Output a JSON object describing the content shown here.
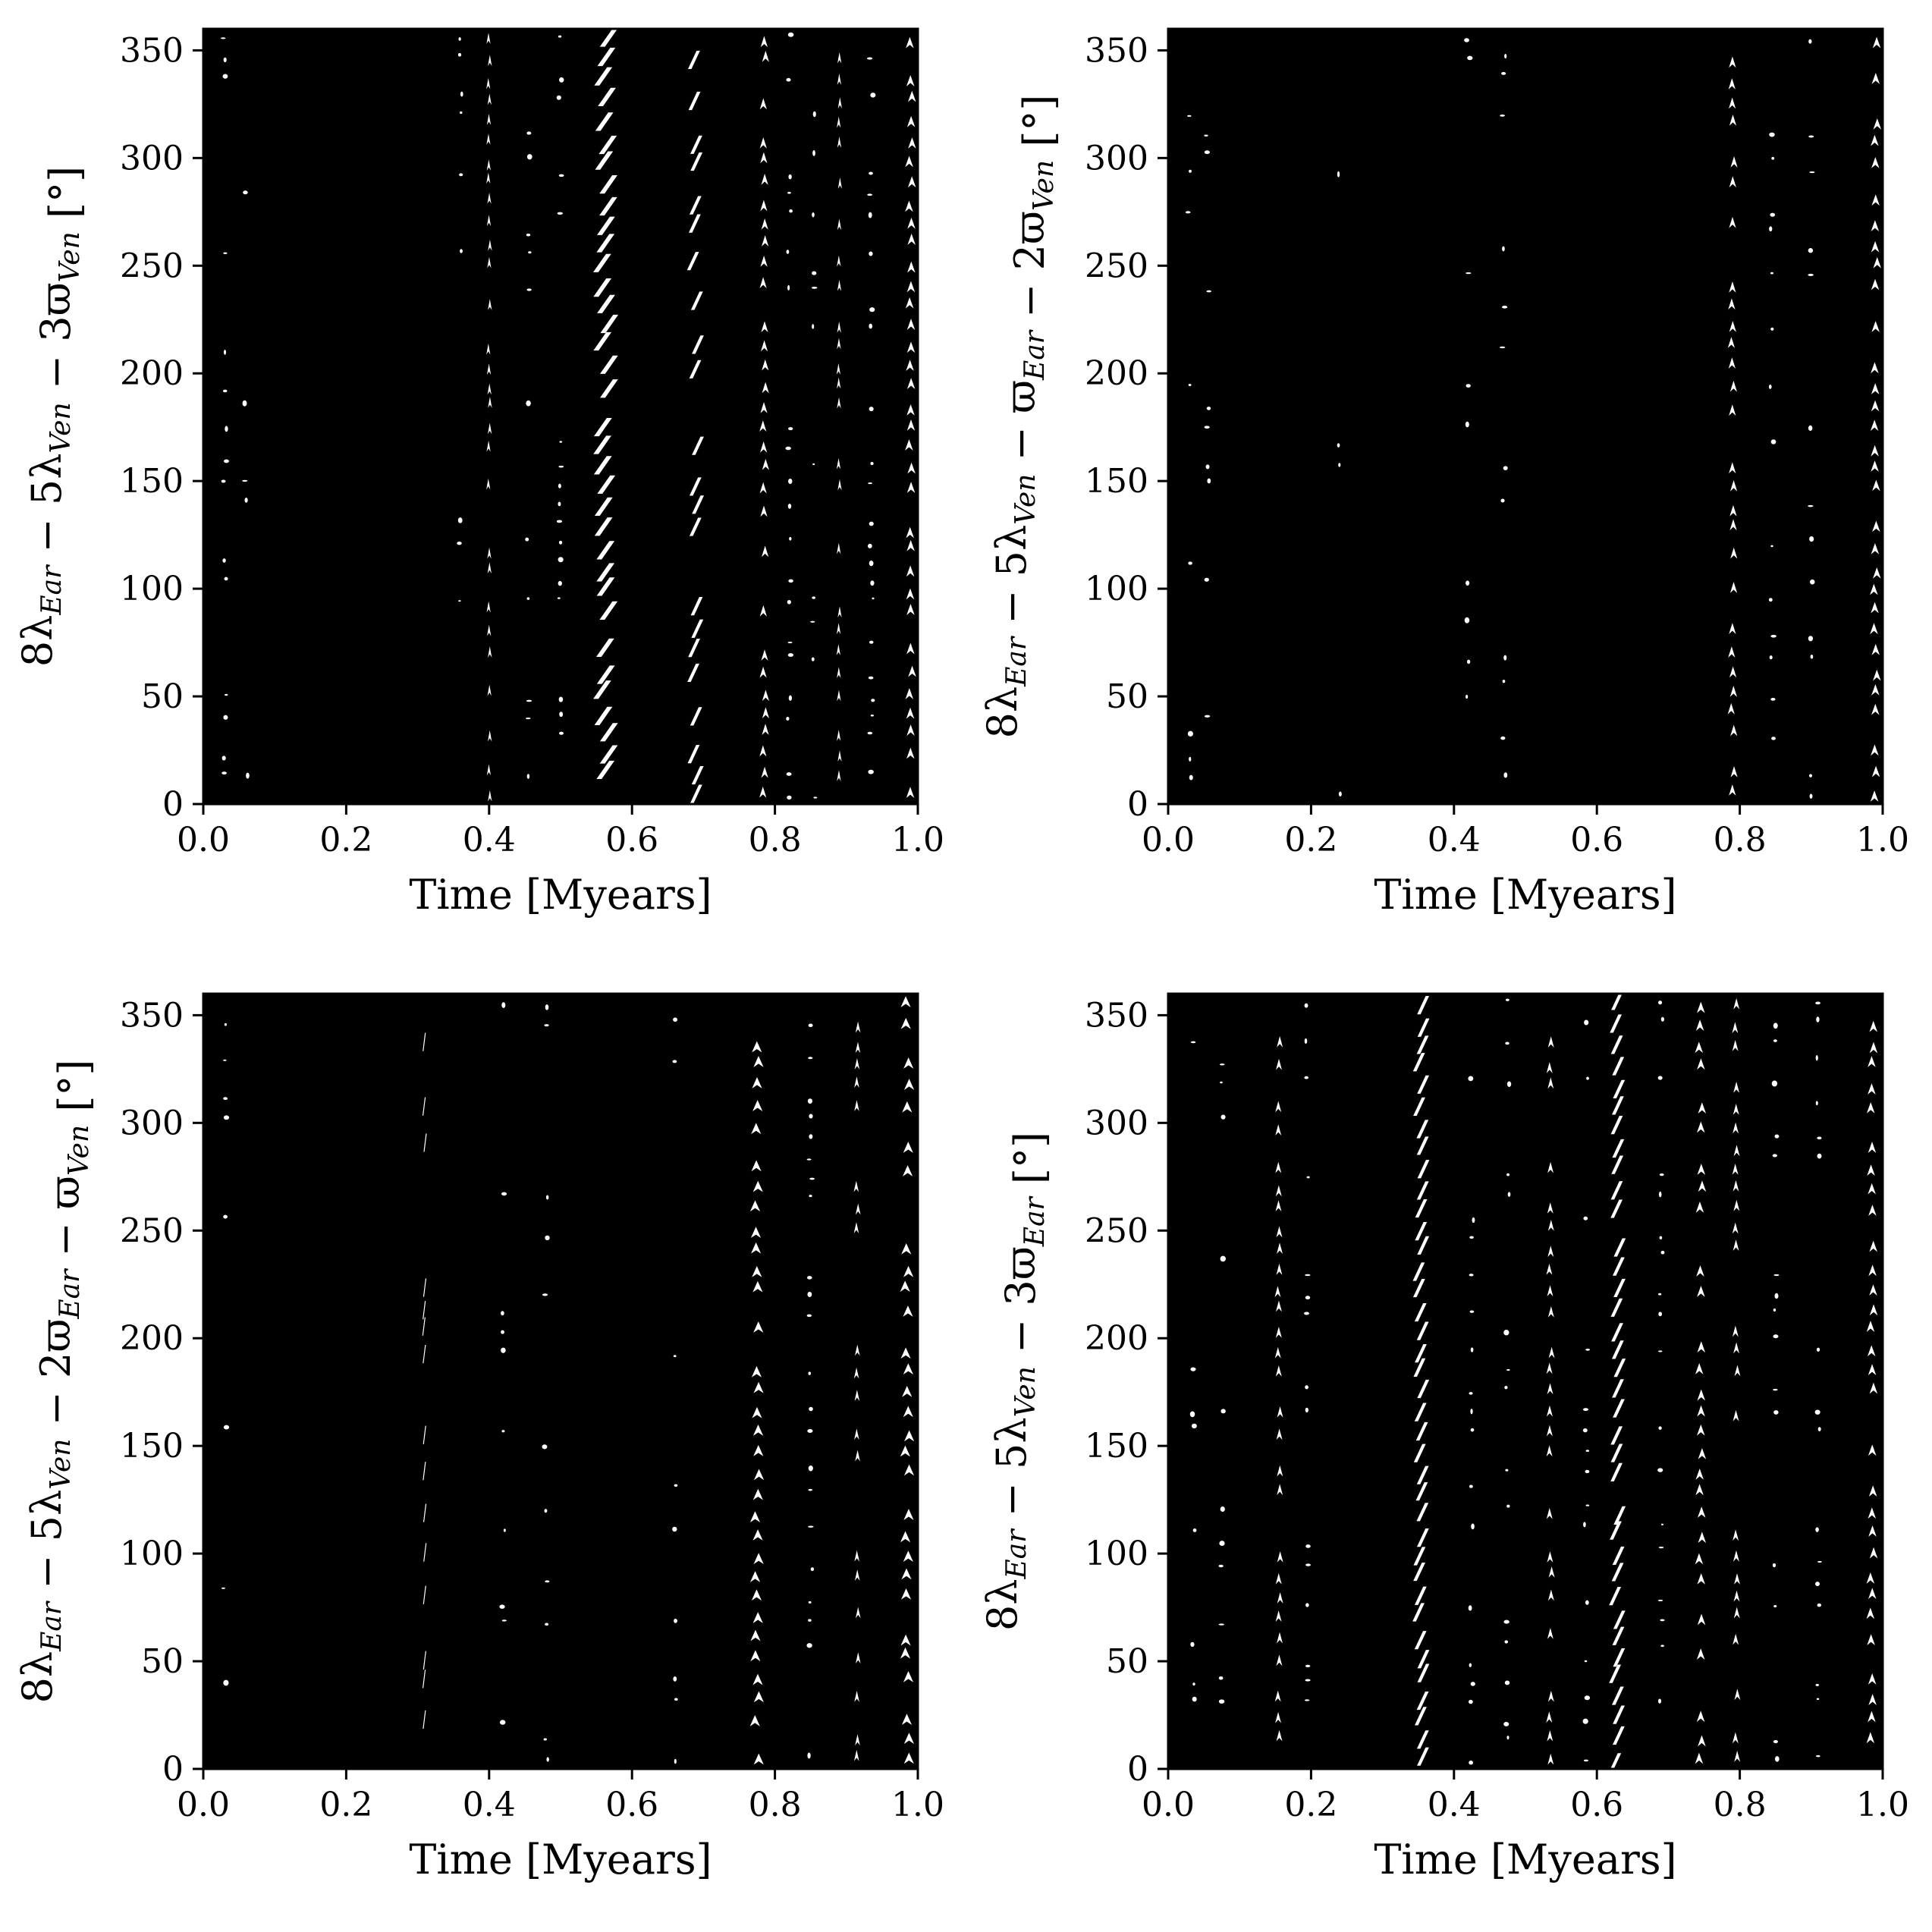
{
  "chart_data": [
    {
      "type": "scatter",
      "panel": "top-left",
      "xlabel": "Time [Myears]",
      "ylabel": "8λEar − 5λVen − 3ϖVen [°]",
      "ylabel_parts": [
        "8λ",
        "Ear",
        " − 5λ",
        "Ven",
        " − 3ϖ",
        "Ven",
        " [°]"
      ],
      "xlim": [
        0.0,
        1.0
      ],
      "ylim": [
        0,
        360
      ],
      "xticks": [
        "0.0",
        "0.2",
        "0.4",
        "0.6",
        "0.8",
        "1.0"
      ],
      "yticks": [
        "0",
        "50",
        "100",
        "150",
        "200",
        "250",
        "300",
        "350"
      ],
      "grid": false,
      "legend": "none",
      "marker_color": "#000000",
      "gaps": [
        {
          "t": 0.03,
          "width": 0.004,
          "density": 0.12,
          "shape": "fleck"
        },
        {
          "t": 0.06,
          "width": 0.004,
          "density": 0.08,
          "shape": "fleck"
        },
        {
          "t": 0.36,
          "width": 0.003,
          "density": 0.15,
          "shape": "fleck"
        },
        {
          "t": 0.4,
          "width": 0.004,
          "density": 0.45,
          "shape": "chevron"
        },
        {
          "t": 0.455,
          "width": 0.004,
          "density": 0.15,
          "shape": "fleck"
        },
        {
          "t": 0.5,
          "width": 0.004,
          "density": 0.15,
          "shape": "fleck"
        },
        {
          "t": 0.565,
          "width": 0.018,
          "density": 0.75,
          "shape": "diagonal"
        },
        {
          "t": 0.69,
          "width": 0.012,
          "density": 0.45,
          "shape": "diagonal"
        },
        {
          "t": 0.785,
          "width": 0.007,
          "density": 0.6,
          "shape": "chevron"
        },
        {
          "t": 0.82,
          "width": 0.004,
          "density": 0.2,
          "shape": "fleck"
        },
        {
          "t": 0.855,
          "width": 0.004,
          "density": 0.25,
          "shape": "fleck"
        },
        {
          "t": 0.89,
          "width": 0.004,
          "density": 0.3,
          "shape": "chevron"
        },
        {
          "t": 0.935,
          "width": 0.004,
          "density": 0.25,
          "shape": "fleck"
        },
        {
          "t": 0.99,
          "width": 0.008,
          "density": 0.7,
          "shape": "chevron"
        }
      ]
    },
    {
      "type": "scatter",
      "panel": "top-right",
      "xlabel": "Time [Myears]",
      "ylabel": "8λEar − 5λVen − ϖEar − 2ϖVen [°]",
      "ylabel_parts": [
        "8λ",
        "Ear",
        " − 5λ",
        "Ven",
        " − ϖ",
        "Ear",
        " − 2ϖ",
        "Ven",
        " [°]"
      ],
      "xlim": [
        0.0,
        1.0
      ],
      "ylim": [
        0,
        360
      ],
      "xticks": [
        "0.0",
        "0.2",
        "0.4",
        "0.6",
        "0.8",
        "1.0"
      ],
      "yticks": [
        "0",
        "50",
        "100",
        "150",
        "200",
        "250",
        "300",
        "350"
      ],
      "grid": false,
      "legend": "none",
      "marker_color": "#000000",
      "gaps": [
        {
          "t": 0.03,
          "width": 0.004,
          "density": 0.12,
          "shape": "fleck"
        },
        {
          "t": 0.055,
          "width": 0.004,
          "density": 0.1,
          "shape": "fleck"
        },
        {
          "t": 0.24,
          "width": 0.002,
          "density": 0.05,
          "shape": "fleck"
        },
        {
          "t": 0.42,
          "width": 0.004,
          "density": 0.12,
          "shape": "fleck"
        },
        {
          "t": 0.47,
          "width": 0.004,
          "density": 0.12,
          "shape": "fleck"
        },
        {
          "t": 0.79,
          "width": 0.007,
          "density": 0.55,
          "shape": "chevron"
        },
        {
          "t": 0.845,
          "width": 0.004,
          "density": 0.15,
          "shape": "fleck"
        },
        {
          "t": 0.9,
          "width": 0.004,
          "density": 0.15,
          "shape": "fleck"
        },
        {
          "t": 0.99,
          "width": 0.008,
          "density": 0.6,
          "shape": "chevron"
        }
      ]
    },
    {
      "type": "scatter",
      "panel": "bottom-left",
      "xlabel": "Time [Myears]",
      "ylabel": "8λEar − 5λVen − 2ϖEar − ϖVen [°]",
      "ylabel_parts": [
        "8λ",
        "Ear",
        " − 5λ",
        "Ven",
        " − 2ϖ",
        "Ear",
        " − ϖ",
        "Ven",
        " [°]"
      ],
      "xlim": [
        0.0,
        1.0
      ],
      "ylim": [
        0,
        360
      ],
      "xticks": [
        "0.0",
        "0.2",
        "0.4",
        "0.6",
        "0.8",
        "1.0"
      ],
      "yticks": [
        "0",
        "50",
        "100",
        "150",
        "200",
        "250",
        "300",
        "350"
      ],
      "grid": false,
      "legend": "none",
      "marker_color": "#000000",
      "gaps": [
        {
          "t": 0.03,
          "width": 0.004,
          "density": 0.1,
          "shape": "fleck"
        },
        {
          "t": 0.31,
          "width": 0.003,
          "density": 0.2,
          "shape": "diagonal"
        },
        {
          "t": 0.42,
          "width": 0.004,
          "density": 0.12,
          "shape": "fleck"
        },
        {
          "t": 0.48,
          "width": 0.004,
          "density": 0.12,
          "shape": "fleck"
        },
        {
          "t": 0.66,
          "width": 0.003,
          "density": 0.08,
          "shape": "fleck"
        },
        {
          "t": 0.775,
          "width": 0.01,
          "density": 0.7,
          "shape": "chevron"
        },
        {
          "t": 0.85,
          "width": 0.004,
          "density": 0.25,
          "shape": "fleck"
        },
        {
          "t": 0.915,
          "width": 0.005,
          "density": 0.35,
          "shape": "chevron"
        },
        {
          "t": 0.985,
          "width": 0.01,
          "density": 0.65,
          "shape": "chevron"
        }
      ]
    },
    {
      "type": "scatter",
      "panel": "bottom-right",
      "xlabel": "Time [Myears]",
      "ylabel": "8λEar − 5λVen − 3ϖEar [°]",
      "ylabel_parts": [
        "8λ",
        "Ear",
        " − 5λ",
        "Ven",
        " − 3ϖ",
        "Ear",
        " [°]"
      ],
      "xlim": [
        0.0,
        1.0
      ],
      "ylim": [
        0,
        360
      ],
      "xticks": [
        "0.0",
        "0.2",
        "0.4",
        "0.6",
        "0.8",
        "1.0"
      ],
      "yticks": [
        "0",
        "50",
        "100",
        "150",
        "200",
        "250",
        "300",
        "350"
      ],
      "grid": false,
      "legend": "none",
      "marker_color": "#000000",
      "gaps": [
        {
          "t": 0.035,
          "width": 0.004,
          "density": 0.15,
          "shape": "fleck"
        },
        {
          "t": 0.075,
          "width": 0.004,
          "density": 0.15,
          "shape": "fleck"
        },
        {
          "t": 0.155,
          "width": 0.006,
          "density": 0.55,
          "shape": "chevron"
        },
        {
          "t": 0.195,
          "width": 0.004,
          "density": 0.2,
          "shape": "fleck"
        },
        {
          "t": 0.355,
          "width": 0.012,
          "density": 0.8,
          "shape": "diagonal"
        },
        {
          "t": 0.425,
          "width": 0.004,
          "density": 0.25,
          "shape": "fleck"
        },
        {
          "t": 0.475,
          "width": 0.004,
          "density": 0.25,
          "shape": "fleck"
        },
        {
          "t": 0.535,
          "width": 0.006,
          "density": 0.5,
          "shape": "chevron"
        },
        {
          "t": 0.585,
          "width": 0.004,
          "density": 0.25,
          "shape": "fleck"
        },
        {
          "t": 0.63,
          "width": 0.012,
          "density": 0.8,
          "shape": "diagonal"
        },
        {
          "t": 0.69,
          "width": 0.004,
          "density": 0.3,
          "shape": "fleck"
        },
        {
          "t": 0.745,
          "width": 0.008,
          "density": 0.7,
          "shape": "chevron"
        },
        {
          "t": 0.795,
          "width": 0.006,
          "density": 0.5,
          "shape": "chevron"
        },
        {
          "t": 0.85,
          "width": 0.004,
          "density": 0.25,
          "shape": "fleck"
        },
        {
          "t": 0.91,
          "width": 0.004,
          "density": 0.25,
          "shape": "fleck"
        },
        {
          "t": 0.985,
          "width": 0.008,
          "density": 0.6,
          "shape": "chevron"
        }
      ]
    }
  ]
}
